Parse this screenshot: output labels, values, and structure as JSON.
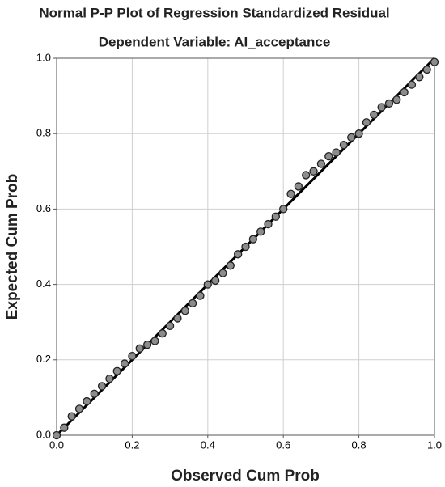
{
  "chart_data": {
    "type": "scatter",
    "title": "Normal P-P Plot of Regression Standardized Residual",
    "subtitle": "Dependent Variable: AI_acceptance",
    "x_label": "Observed Cum Prob",
    "y_label": "Expected Cum Prob",
    "x": [
      0,
      0.02,
      0.04,
      0.06,
      0.08,
      0.1,
      0.12,
      0.14,
      0.16,
      0.18,
      0.2,
      0.22,
      0.24,
      0.26,
      0.28,
      0.3,
      0.32,
      0.34,
      0.36,
      0.38,
      0.4,
      0.42,
      0.44,
      0.46,
      0.48,
      0.5,
      0.52,
      0.54,
      0.56,
      0.58,
      0.6,
      0.62,
      0.64,
      0.66,
      0.68,
      0.7,
      0.72,
      0.74,
      0.76,
      0.78,
      0.8,
      0.82,
      0.84,
      0.86,
      0.88,
      0.9,
      0.92,
      0.94,
      0.96,
      0.98,
      1
    ],
    "values": [
      0,
      0.02,
      0.05,
      0.07,
      0.09,
      0.11,
      0.13,
      0.15,
      0.17,
      0.19,
      0.21,
      0.23,
      0.24,
      0.25,
      0.27,
      0.29,
      0.31,
      0.33,
      0.35,
      0.37,
      0.4,
      0.41,
      0.43,
      0.45,
      0.48,
      0.5,
      0.52,
      0.54,
      0.56,
      0.58,
      0.6,
      0.64,
      0.66,
      0.69,
      0.7,
      0.72,
      0.74,
      0.75,
      0.77,
      0.79,
      0.8,
      0.83,
      0.85,
      0.87,
      0.88,
      0.89,
      0.91,
      0.93,
      0.95,
      0.97,
      0.99
    ],
    "color": "#8c8c8c",
    "xlim": [
      0,
      1
    ],
    "ylim": [
      0,
      1
    ],
    "xticks": [
      {
        "value": 0,
        "label": "0.0"
      },
      0.2,
      0.4,
      0.6,
      0.8,
      {
        "value": 1,
        "label": "1.0"
      }
    ],
    "yticks": [
      {
        "value": 0,
        "label": "0.0"
      },
      0.2,
      0.4,
      0.6,
      0.8,
      {
        "value": 1,
        "label": "1.0"
      }
    ],
    "grid": true
  }
}
